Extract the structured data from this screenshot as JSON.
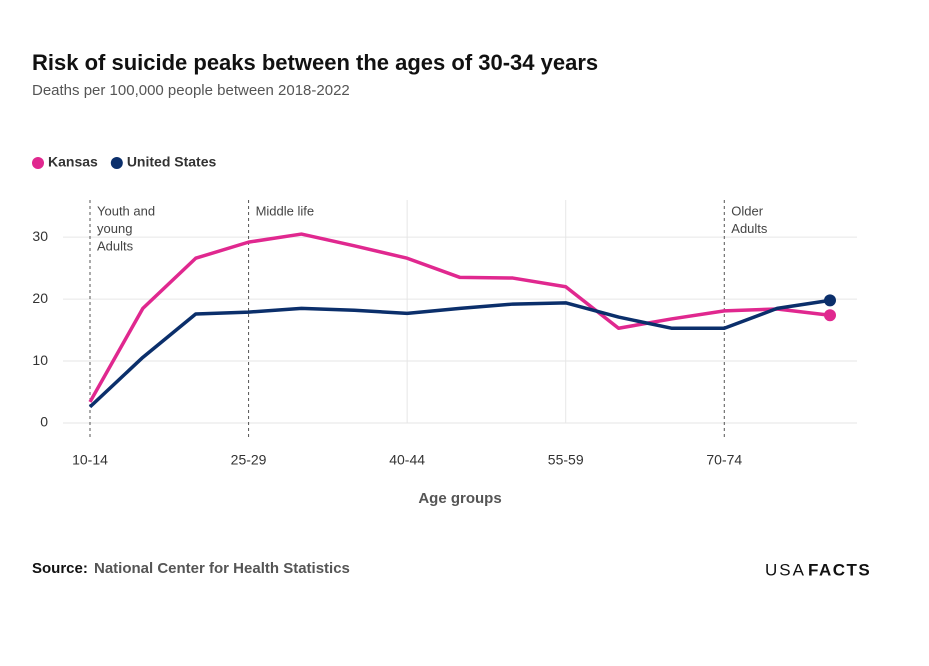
{
  "chart_data": {
    "type": "line",
    "title": "Risk of suicide peaks between the ages of 30-34 years",
    "subtitle": "Deaths per 100,000 people between 2018-2022",
    "x_label": "Age groups",
    "categories": [
      "10-14",
      null,
      null,
      "25-29",
      null,
      null,
      "40-44",
      null,
      null,
      "55-59",
      null,
      null,
      "70-74",
      null,
      null
    ],
    "series": [
      {
        "name": "Kansas",
        "color": "#e0288f",
        "values": [
          3.4,
          18.5,
          26.6,
          29.2,
          30.5,
          28.6,
          26.6,
          23.5,
          23.4,
          22.0,
          15.3,
          16.8,
          18.1,
          18.4,
          17.4
        ]
      },
      {
        "name": "United States",
        "color": "#0b2f6b",
        "values": [
          2.6,
          10.6,
          17.6,
          17.9,
          18.5,
          18.2,
          17.7,
          18.5,
          19.2,
          19.4,
          17.1,
          15.3,
          15.3,
          18.5,
          19.8
        ]
      }
    ],
    "ylim": [
      0,
      36
    ],
    "yticks": [
      0,
      10,
      20,
      30
    ],
    "grid": true,
    "annotations": [
      {
        "at": "10-14",
        "lines": [
          "Youth and",
          "young",
          "Adults"
        ]
      },
      {
        "at": "25-29",
        "lines": [
          "Middle life"
        ]
      },
      {
        "at": "70-74",
        "lines": [
          "Older",
          "Adults"
        ]
      }
    ],
    "source_label": "Source:",
    "source": "National Center for Health Statistics",
    "logo": {
      "light": "USA",
      "bold": "FACTS"
    }
  }
}
